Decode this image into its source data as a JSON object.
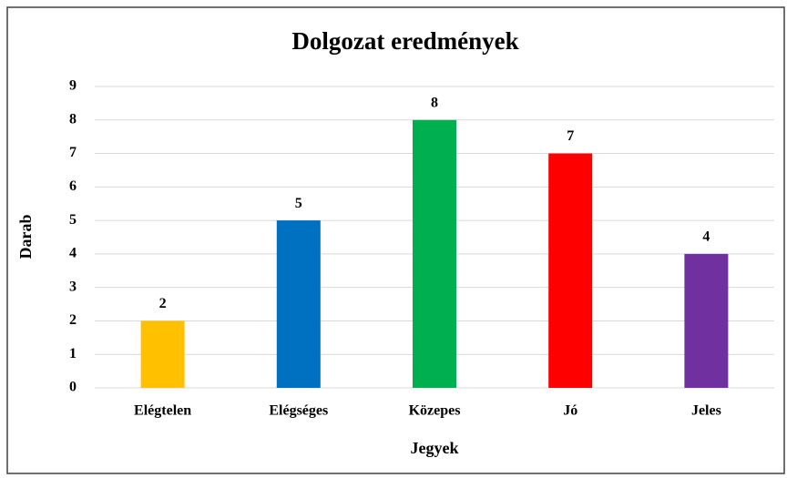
{
  "chart_data": {
    "type": "bar",
    "title": "Dolgozat eredmények",
    "x_label": "Jegyek",
    "y_label": "Darab",
    "categories": [
      "Elégtelen",
      "Elégséges",
      "Közepes",
      "Jó",
      "Jeles"
    ],
    "values": [
      2,
      5,
      8,
      7,
      4
    ],
    "colors": [
      "#ffc000",
      "#0070c0",
      "#00b050",
      "#ff0000",
      "#7030a0"
    ],
    "ylim": [
      0,
      9
    ],
    "yticks": [
      0,
      1,
      2,
      3,
      4,
      5,
      6,
      7,
      8,
      9
    ],
    "grid": true
  }
}
